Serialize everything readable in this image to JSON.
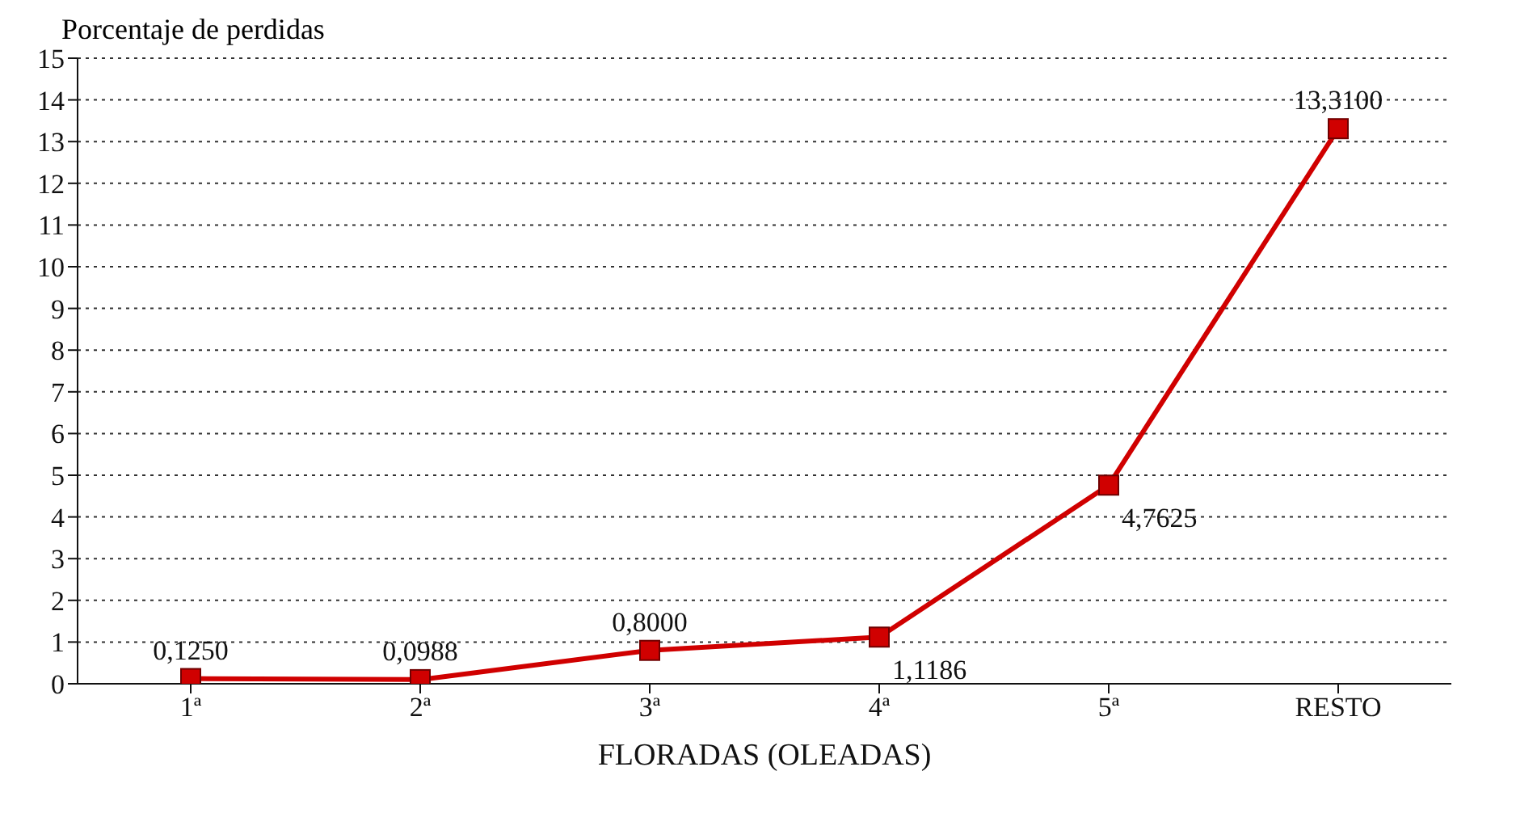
{
  "chart_data": {
    "type": "line",
    "ylabel": "Porcentaje de perdidas",
    "xlabel": "FLORADAS (OLEADAS)",
    "categories": [
      "1ª",
      "2ª",
      "3ª",
      "4ª",
      "5ª",
      "RESTO"
    ],
    "series": [
      {
        "color": "#d00000",
        "values": [
          0.125,
          0.0988,
          0.8,
          1.1186,
          4.7625,
          13.31
        ],
        "value_labels": [
          "0,1250",
          "0,0988",
          "0,8000",
          "1,1186",
          "4,7625",
          "13,3100"
        ]
      }
    ],
    "ylim": [
      0,
      15
    ],
    "yticks": [
      0,
      1,
      2,
      3,
      4,
      5,
      6,
      7,
      8,
      9,
      10,
      11,
      12,
      13,
      14,
      15
    ],
    "grid": "y",
    "marker": "square",
    "line_style": "solid"
  }
}
